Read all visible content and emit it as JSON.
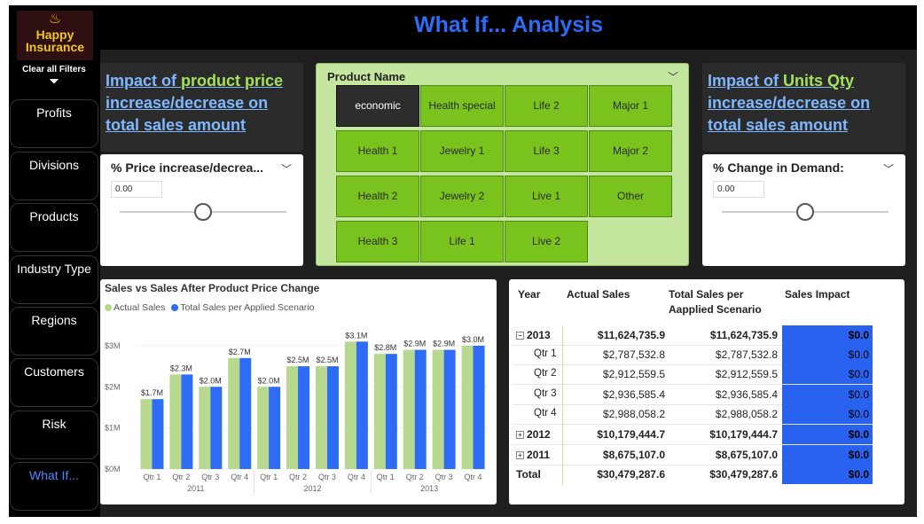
{
  "sidebar": {
    "logo_line1": "Happy",
    "logo_line2": "Insurance",
    "clear_filters": "Clear all Filters",
    "items": [
      {
        "label": "Profits"
      },
      {
        "label": "Divisions"
      },
      {
        "label": "Products"
      },
      {
        "label": "Industry Type"
      },
      {
        "label": "Regions"
      },
      {
        "label": "Customers"
      },
      {
        "label": "Risk"
      },
      {
        "label": "What If..."
      }
    ]
  },
  "header": {
    "title": "What If... Analysis"
  },
  "left_panel": {
    "impact_a": "Impact of ",
    "impact_b": "product price",
    "impact_c": "increase/decrease on",
    "impact_d": "total sales amount",
    "slicer_title": "% Price increase/decrea...",
    "slicer_value": "0.00",
    "slider_fraction": 0.5
  },
  "right_panel": {
    "impact_a": "Impact of ",
    "impact_b": "Units Qty",
    "impact_c": "increase/decrease on",
    "impact_d": "total sales amount",
    "slicer_title": "% Change in Demand:",
    "slicer_value": "0.00",
    "slider_fraction": 0.5
  },
  "product_slicer": {
    "title": "Product Name",
    "selected": "economic",
    "items": [
      "economic",
      "Health special",
      "Life 2",
      "Major 1",
      "Health 1",
      "Jewelry 1",
      "Life 3",
      "Major 2",
      "Health 2",
      "Jewelry 2",
      "Live 1",
      "Other",
      "Health 3",
      "Life 1",
      "Live 2"
    ]
  },
  "chart_data": {
    "type": "bar",
    "title": "Sales vs Sales After Product Price Change",
    "legend_position": "top-left",
    "categories": [
      "Qtr 1",
      "Qtr 2",
      "Qtr 3",
      "Qtr 4",
      "Qtr 1",
      "Qtr 2",
      "Qtr 3",
      "Qtr 4",
      "Qtr 1",
      "Qtr 2",
      "Qtr 3",
      "Qtr 4"
    ],
    "groups": [
      {
        "label": "2011",
        "count": 4
      },
      {
        "label": "2012",
        "count": 4
      },
      {
        "label": "2013",
        "count": 4
      }
    ],
    "series": [
      {
        "name": "Actual Sales",
        "color": "#b6d98f",
        "values": [
          1.7,
          2.3,
          2.0,
          2.7,
          2.0,
          2.5,
          2.5,
          3.1,
          2.8,
          2.9,
          2.9,
          3.0
        ]
      },
      {
        "name": "Total Sales per Applied Scenario",
        "color": "#2f6cf6",
        "values": [
          1.7,
          2.3,
          2.0,
          2.7,
          2.0,
          2.5,
          2.5,
          3.1,
          2.8,
          2.9,
          2.9,
          3.0
        ]
      }
    ],
    "data_labels": [
      "$1.7M",
      "$2.3M",
      "$2.0M",
      "$2.7M",
      "$2.0M",
      "$2.5M",
      "$2.5M",
      "$3.1M",
      "$2.8M",
      "$2.9M",
      "$2.9M",
      "$3.0M"
    ],
    "ylim": [
      0,
      3.3
    ],
    "yticks": [
      0,
      1,
      2,
      3
    ],
    "ytick_labels": [
      "$0M",
      "$1M",
      "$2M",
      "$3M"
    ],
    "xlabel": "",
    "ylabel": ""
  },
  "table": {
    "headers": [
      "Year",
      "Actual Sales",
      "Total Sales per Aapplied Scenario",
      "Sales Impact"
    ],
    "rows": [
      {
        "label": "2013",
        "actual": "$11,624,735.9",
        "scenario": "$11,624,735.9",
        "impact": "$0.0",
        "level": 0,
        "expand": "−",
        "bold": true
      },
      {
        "label": "Qtr 1",
        "actual": "$2,787,532.8",
        "scenario": "$2,787,532.8",
        "impact": "$0.0",
        "level": 1,
        "bold": false
      },
      {
        "label": "Qtr 2",
        "actual": "$2,912,559.5",
        "scenario": "$2,912,559.5",
        "impact": "$0.0",
        "level": 1,
        "bold": false
      },
      {
        "label": "Qtr 3",
        "actual": "$2,936,585.4",
        "scenario": "$2,936,585.4",
        "impact": "$0.0",
        "level": 1,
        "bold": false
      },
      {
        "label": "Qtr 4",
        "actual": "$2,988,058.2",
        "scenario": "$2,988,058.2",
        "impact": "$0.0",
        "level": 1,
        "bold": false
      },
      {
        "label": "2012",
        "actual": "$10,179,444.7",
        "scenario": "$10,179,444.7",
        "impact": "$0.0",
        "level": 0,
        "expand": "+",
        "bold": true
      },
      {
        "label": "2011",
        "actual": "$8,675,107.0",
        "scenario": "$8,675,107.0",
        "impact": "$0.0",
        "level": 0,
        "expand": "+",
        "bold": true
      },
      {
        "label": "Total",
        "actual": "$30,479,287.6",
        "scenario": "$30,479,287.6",
        "impact": "$0.0",
        "level": 0,
        "bold": true,
        "total": true
      }
    ]
  },
  "colors": {
    "accent_blue": "#2f6cf6",
    "tile_green": "#7ac31f",
    "highlight_green": "#a3e35a"
  }
}
